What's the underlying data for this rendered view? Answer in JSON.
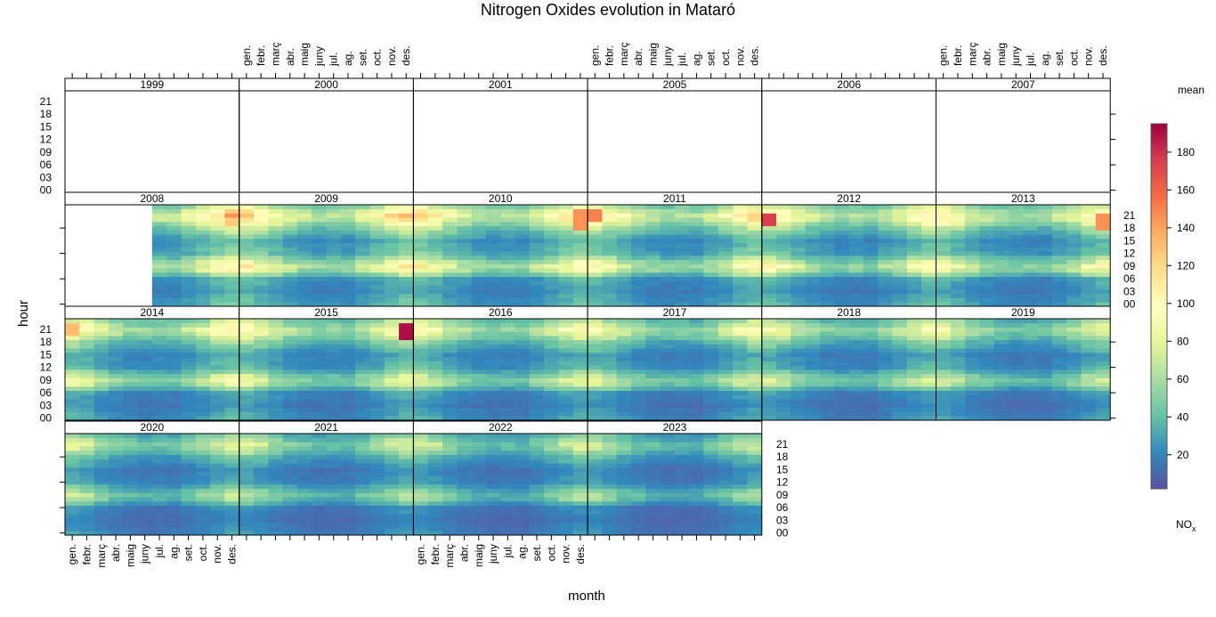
{
  "chart_data": {
    "type": "heatmap",
    "title": "Nitrogen Oxides evolution in Mataró",
    "xlabel": "month",
    "ylabel": "hour",
    "months": [
      "gen.",
      "febr.",
      "març",
      "abr.",
      "maig",
      "juny",
      "jul.",
      "ag.",
      "set.",
      "oct.",
      "nov.",
      "des."
    ],
    "hour_ticks": [
      "00",
      "03",
      "06",
      "09",
      "12",
      "15",
      "18",
      "21"
    ],
    "panels": [
      "1999",
      "2000",
      "2001",
      "2005",
      "2006",
      "2007",
      "2008",
      "2009",
      "2010",
      "2011",
      "2012",
      "2013",
      "2014",
      "2015",
      "2016",
      "2017",
      "2018",
      "2019",
      "2020",
      "2021",
      "2022",
      "2023"
    ],
    "empty_panels": [
      "1999",
      "2000",
      "2001",
      "2005",
      "2006",
      "2007"
    ],
    "partial_panels": {
      "2008": {
        "first_month": "jul."
      }
    },
    "colorbar": {
      "title": "mean",
      "label": "NOx",
      "label_main": "NO",
      "label_sub": "x",
      "min": 2,
      "max": 195,
      "ticks": [
        20,
        40,
        60,
        80,
        100,
        120,
        140,
        160,
        180
      ],
      "colors": [
        "#5E4FA2",
        "#3288BD",
        "#66C2A5",
        "#ABDDA4",
        "#E6F598",
        "#FFFFBF",
        "#FEE08B",
        "#FDAE61",
        "#F46D43",
        "#D53E4F",
        "#9E0142"
      ]
    },
    "z_description": "mean NOx by hour of day (y) and month (x) for each year panel",
    "typical_profile_by_hour": {
      "00": 30,
      "03": 22,
      "06": 28,
      "08": 65,
      "09": 72,
      "10": 60,
      "12": 35,
      "15": 28,
      "18": 50,
      "20": 78,
      "21": 85,
      "23": 60
    },
    "peaks": [
      {
        "year": "2015",
        "month": "des.",
        "hours": "19-22",
        "value": 190
      },
      {
        "year": "2011",
        "month": "gen.",
        "hours": "20-22",
        "value": 150
      },
      {
        "year": "2012",
        "month": "gen.",
        "hours": "19-21",
        "value": 175
      },
      {
        "year": "2010",
        "month": "des.",
        "hours": "18-22",
        "value": 145
      },
      {
        "year": "2013",
        "month": "des.",
        "hours": "18-21",
        "value": 145
      },
      {
        "year": "2008",
        "month": "des.",
        "hours": "19-22",
        "value": 125
      },
      {
        "year": "2014",
        "month": "gen.",
        "hours": "20-22",
        "value": 130
      }
    ]
  }
}
